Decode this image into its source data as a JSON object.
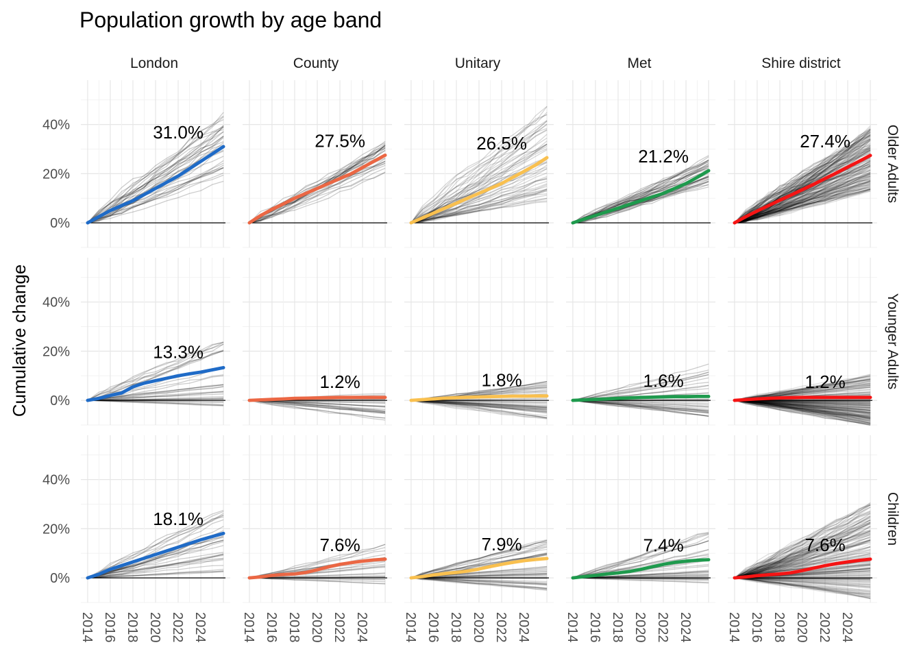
{
  "chart_data": {
    "type": "line",
    "title": "Population growth by age band",
    "xlabel": "",
    "ylabel": "Cumulative change",
    "x": [
      2014,
      2015,
      2016,
      2017,
      2018,
      2019,
      2020,
      2021,
      2022,
      2023,
      2024,
      2025,
      2026
    ],
    "x_ticks": [
      "2014",
      "2016",
      "2018",
      "2020",
      "2022",
      "2024"
    ],
    "y_ticks": [
      "0%",
      "20%",
      "40%"
    ],
    "ylim": [
      -0.1,
      0.58
    ],
    "grid": true,
    "columns": [
      "London",
      "County",
      "Unitary",
      "Met",
      "Shire district"
    ],
    "rows": [
      "Older Adults",
      "Younger Adults",
      "Children"
    ],
    "colors": {
      "London": "#1F6BC7",
      "County": "#EB6744",
      "Unitary": "#F9C04F",
      "Met": "#1E9A4D",
      "Shire district": "#F51414",
      "background_lines": "#000000",
      "zero_line": "#000000"
    },
    "background_line_counts": {
      "London": 33,
      "County": 26,
      "Unitary": 56,
      "Met": 36,
      "Shire district": 190
    },
    "panels": [
      {
        "row": "Older Adults",
        "col": "London",
        "label": "31.0%",
        "values": [
          0,
          0.025,
          0.05,
          0.07,
          0.09,
          0.115,
          0.14,
          0.165,
          0.19,
          0.22,
          0.25,
          0.28,
          0.31
        ],
        "spread": {
          "min": 0.17,
          "max": 0.5
        }
      },
      {
        "row": "Older Adults",
        "col": "County",
        "label": "27.5%",
        "values": [
          0,
          0.03,
          0.055,
          0.077,
          0.1,
          0.12,
          0.14,
          0.16,
          0.18,
          0.2,
          0.225,
          0.25,
          0.275
        ],
        "spread": {
          "min": 0.2,
          "max": 0.35
        }
      },
      {
        "row": "Older Adults",
        "col": "Unitary",
        "label": "26.5%",
        "values": [
          0,
          0.02,
          0.04,
          0.06,
          0.08,
          0.1,
          0.12,
          0.14,
          0.16,
          0.185,
          0.21,
          0.235,
          0.265
        ],
        "spread": {
          "min": 0.09,
          "max": 0.55
        }
      },
      {
        "row": "Older Adults",
        "col": "Met",
        "label": "21.2%",
        "values": [
          0,
          0.015,
          0.03,
          0.045,
          0.06,
          0.075,
          0.09,
          0.105,
          0.12,
          0.14,
          0.16,
          0.185,
          0.212
        ],
        "spread": {
          "min": 0.15,
          "max": 0.3
        }
      },
      {
        "row": "Older Adults",
        "col": "Shire district",
        "label": "27.4%",
        "values": [
          0,
          0.025,
          0.048,
          0.07,
          0.092,
          0.113,
          0.135,
          0.157,
          0.18,
          0.203,
          0.227,
          0.25,
          0.274
        ],
        "spread": {
          "min": 0.13,
          "max": 0.43
        }
      },
      {
        "row": "Younger Adults",
        "col": "London",
        "label": "13.3%",
        "values": [
          0,
          0.008,
          0.02,
          0.03,
          0.055,
          0.07,
          0.08,
          0.09,
          0.1,
          0.108,
          0.115,
          0.124,
          0.133
        ],
        "spread": {
          "min": -0.03,
          "max": 0.3
        }
      },
      {
        "row": "Younger Adults",
        "col": "County",
        "label": "1.2%",
        "values": [
          0,
          0.002,
          0.004,
          0.006,
          0.008,
          0.009,
          0.01,
          0.011,
          0.012,
          0.012,
          0.012,
          0.012,
          0.012
        ],
        "spread": {
          "min": -0.08,
          "max": 0.06
        }
      },
      {
        "row": "Younger Adults",
        "col": "Unitary",
        "label": "1.8%",
        "values": [
          0,
          0.003,
          0.006,
          0.009,
          0.011,
          0.013,
          0.014,
          0.015,
          0.016,
          0.017,
          0.017,
          0.018,
          0.018
        ],
        "spread": {
          "min": -0.08,
          "max": 0.11
        }
      },
      {
        "row": "Younger Adults",
        "col": "Met",
        "label": "1.6%",
        "values": [
          0,
          0.002,
          0.004,
          0.006,
          0.008,
          0.01,
          0.012,
          0.013,
          0.014,
          0.015,
          0.015,
          0.016,
          0.016
        ],
        "spread": {
          "min": -0.07,
          "max": 0.19
        }
      },
      {
        "row": "Younger Adults",
        "col": "Shire district",
        "label": "1.2%",
        "values": [
          0,
          0.003,
          0.006,
          0.008,
          0.01,
          0.011,
          0.012,
          0.012,
          0.012,
          0.012,
          0.012,
          0.012,
          0.012
        ],
        "spread": {
          "min": -0.1,
          "max": 0.14
        }
      },
      {
        "row": "Children",
        "col": "London",
        "label": "18.1%",
        "values": [
          0,
          0.015,
          0.035,
          0.05,
          0.065,
          0.08,
          0.095,
          0.11,
          0.125,
          0.14,
          0.155,
          0.168,
          0.181
        ],
        "spread": {
          "min": 0.02,
          "max": 0.34
        }
      },
      {
        "row": "Children",
        "col": "County",
        "label": "7.6%",
        "values": [
          0,
          0.004,
          0.01,
          0.014,
          0.016,
          0.022,
          0.033,
          0.045,
          0.055,
          0.062,
          0.068,
          0.073,
          0.076
        ],
        "spread": {
          "min": -0.03,
          "max": 0.17
        }
      },
      {
        "row": "Children",
        "col": "Unitary",
        "label": "7.9%",
        "values": [
          0,
          0.005,
          0.012,
          0.018,
          0.022,
          0.028,
          0.036,
          0.046,
          0.055,
          0.063,
          0.07,
          0.075,
          0.079
        ],
        "spread": {
          "min": -0.05,
          "max": 0.2
        }
      },
      {
        "row": "Children",
        "col": "Met",
        "label": "7.4%",
        "values": [
          0,
          0.005,
          0.01,
          0.016,
          0.02,
          0.026,
          0.035,
          0.045,
          0.055,
          0.063,
          0.068,
          0.072,
          0.074
        ],
        "spread": {
          "min": -0.02,
          "max": 0.23
        }
      },
      {
        "row": "Children",
        "col": "Shire district",
        "label": "7.6%",
        "values": [
          0,
          0.004,
          0.009,
          0.013,
          0.016,
          0.021,
          0.03,
          0.04,
          0.05,
          0.058,
          0.065,
          0.071,
          0.076
        ],
        "spread": {
          "min": -0.08,
          "max": 0.38
        }
      }
    ]
  }
}
